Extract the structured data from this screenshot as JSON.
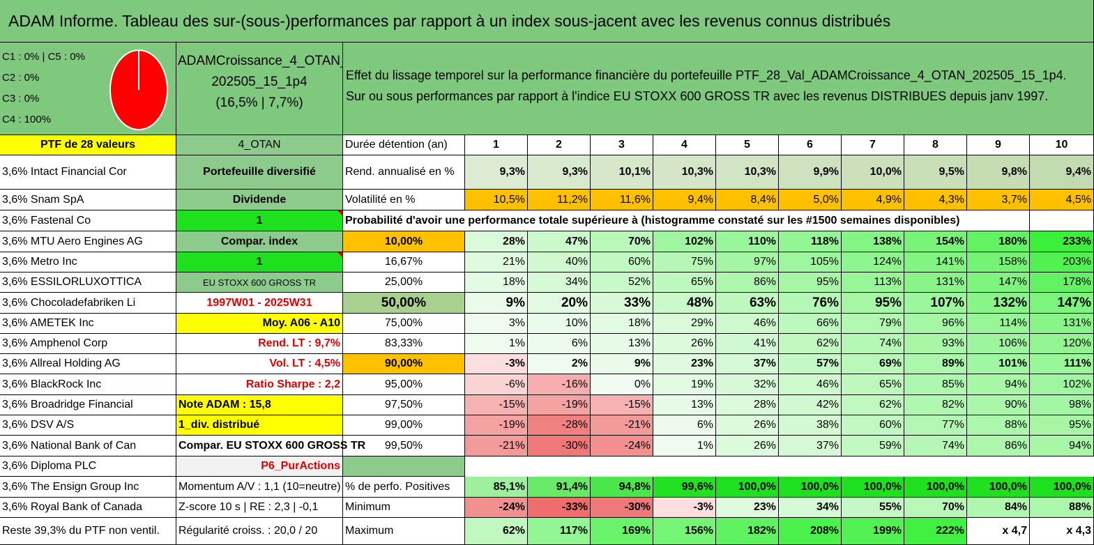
{
  "title": "ADAM Informe. Tableau des sur-(sous-)performances par rapport à un index sous-jacent avec les revenus connus distribués",
  "legend": {
    "c1c5": "C1 : 0% | C5 : 0%",
    "c2": "C2 : 0%",
    "c3": "C3 : 0%",
    "c4": "C4 : 100%"
  },
  "portfolio": {
    "name_line1": "ADAMCroissance_4_OTAN_",
    "name_line2": "202505_15_1p4",
    "name_line3": "(16,5% | 7,7%)"
  },
  "description": {
    "line1": "Effet du lissage temporel sur la performance financière du portefeuille PTF_28_Val_ADAMCroissance_4_OTAN_202505_15_1p4.",
    "line2": "Sur ou sous performances par rapport à l'indice EU STOXX 600 GROSS TR avec les revenus DISTRIBUES depuis janv 1997."
  },
  "colors": {
    "header_green": "#7ec97e",
    "yellow": "#ffff00",
    "orange": "#ffc000",
    "bright_green": "#1fe01f",
    "mid_green": "#8ccb8c",
    "pie_red": "#ff0000"
  },
  "holdings": [
    "PTF de 28 valeurs",
    "3,6% Intact Financial Cor",
    "3,6% Snam SpA",
    "3,6% Fastenal Co",
    "3,6% MTU Aero Engines AG",
    "3,6% Metro Inc",
    "3,6% ESSILORLUXOTTICA",
    "3,6% Chocoladefabriken Li",
    "3,6% AMETEK Inc",
    "3,6% Amphenol Corp",
    "3,6% Allreal Holding AG",
    "3,6% BlackRock Inc",
    "3,6% Broadridge Financial",
    "3,6% DSV A/S",
    "3,6% National Bank of Can",
    "3,6% Diploma PLC",
    "3,6% The Ensign Group Inc",
    "3,6% Royal Bank of Canada",
    "Reste 39,3% du PTF non ventil."
  ],
  "info": [
    "4_OTAN",
    "Portefeuille diversifié",
    "Dividende",
    "1",
    "Compar. index",
    "1",
    "EU STOXX 600 GROSS TR",
    "1997W01 - 2025W31",
    "Moy. A06 - A10",
    "Rend. LT : 9,7%",
    "Vol. LT : 4,5%",
    "Ratio Sharpe : 2,2",
    "Note ADAM : 15,8",
    "1_div. distribué",
    "Compar. EU STOXX 600 GROSS TR",
    "P6_PurActions",
    "Momentum A/V : 1,1 (10=neutre)",
    "Z-score 10 s | RE : 2,3 | -0,1",
    "Régularité croiss. : 20,0 / 20"
  ],
  "table": {
    "header_label": "Durée détention (an)",
    "years": [
      "1",
      "2",
      "3",
      "4",
      "5",
      "6",
      "7",
      "8",
      "9",
      "10"
    ],
    "rend_label": "Rend. annualisé en %",
    "rend": [
      "9,3%",
      "9,3%",
      "10,1%",
      "10,3%",
      "10,3%",
      "9,9%",
      "10,0%",
      "9,5%",
      "9,8%",
      "9,4%"
    ],
    "vol_label": "Volatilité en %",
    "vol": [
      "10,5%",
      "11,2%",
      "11,6%",
      "9,4%",
      "8,4%",
      "5,0%",
      "4,9%",
      "4,3%",
      "3,7%",
      "4,5%"
    ],
    "prob_label": "Probabilité d'avoir une performance totale supérieure à (histogramme constaté sur les #1500 semaines disponibles)",
    "quantiles": [
      {
        "p": "10,00%",
        "v": [
          "28%",
          "47%",
          "70%",
          "102%",
          "110%",
          "118%",
          "138%",
          "154%",
          "180%",
          "233%"
        ]
      },
      {
        "p": "16,67%",
        "v": [
          "21%",
          "40%",
          "60%",
          "75%",
          "97%",
          "105%",
          "124%",
          "141%",
          "158%",
          "203%"
        ]
      },
      {
        "p": "25,00%",
        "v": [
          "18%",
          "34%",
          "52%",
          "65%",
          "86%",
          "95%",
          "113%",
          "131%",
          "147%",
          "178%"
        ]
      },
      {
        "p": "50,00%",
        "v": [
          "9%",
          "20%",
          "33%",
          "48%",
          "63%",
          "76%",
          "95%",
          "107%",
          "132%",
          "147%"
        ]
      },
      {
        "p": "75,00%",
        "v": [
          "3%",
          "10%",
          "18%",
          "29%",
          "46%",
          "66%",
          "79%",
          "96%",
          "114%",
          "131%"
        ]
      },
      {
        "p": "83,33%",
        "v": [
          "1%",
          "6%",
          "13%",
          "26%",
          "41%",
          "62%",
          "74%",
          "93%",
          "106%",
          "120%"
        ]
      },
      {
        "p": "90,00%",
        "v": [
          "-3%",
          "2%",
          "9%",
          "23%",
          "37%",
          "57%",
          "69%",
          "89%",
          "101%",
          "111%"
        ]
      },
      {
        "p": "95,00%",
        "v": [
          "-6%",
          "-16%",
          "0%",
          "19%",
          "32%",
          "46%",
          "65%",
          "85%",
          "94%",
          "102%"
        ]
      },
      {
        "p": "97,50%",
        "v": [
          "-15%",
          "-19%",
          "-15%",
          "13%",
          "28%",
          "42%",
          "62%",
          "82%",
          "90%",
          "98%"
        ]
      },
      {
        "p": "99,00%",
        "v": [
          "-19%",
          "-28%",
          "-21%",
          "6%",
          "26%",
          "38%",
          "60%",
          "77%",
          "88%",
          "95%"
        ]
      },
      {
        "p": "99,50%",
        "v": [
          "-21%",
          "-30%",
          "-24%",
          "1%",
          "26%",
          "37%",
          "59%",
          "74%",
          "86%",
          "94%"
        ]
      }
    ],
    "pos_label": "% de perfo. Positives",
    "pos": [
      "85,1%",
      "91,4%",
      "94,8%",
      "99,6%",
      "100,0%",
      "100,0%",
      "100,0%",
      "100,0%",
      "100,0%",
      "100,0%"
    ],
    "min_label": "Minimum",
    "min": [
      "-24%",
      "-33%",
      "-30%",
      "-3%",
      "23%",
      "34%",
      "55%",
      "70%",
      "84%",
      "88%"
    ],
    "max_label": "Maximum",
    "max": [
      "62%",
      "117%",
      "169%",
      "156%",
      "182%",
      "208%",
      "199%",
      "222%",
      "x 4,7",
      "x 4,3"
    ]
  }
}
